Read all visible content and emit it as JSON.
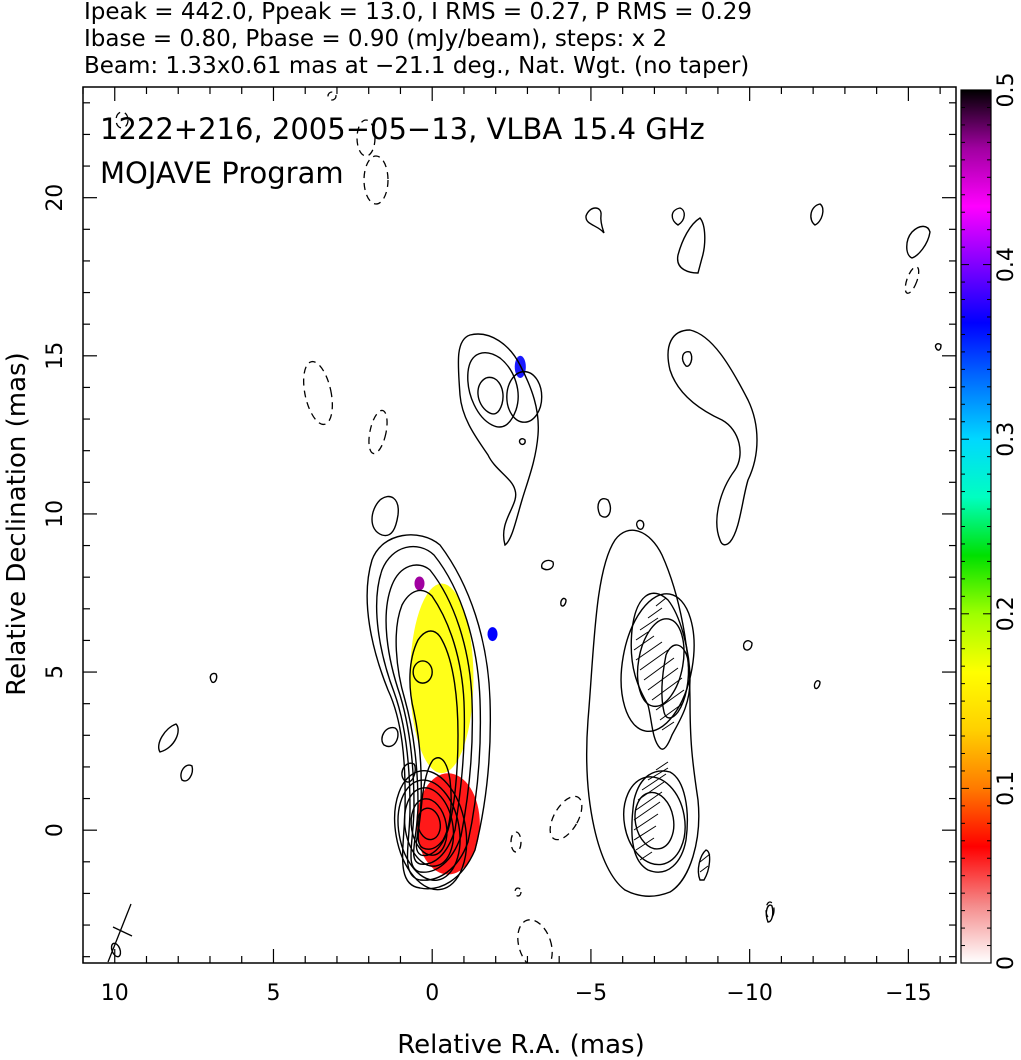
{
  "header": {
    "line1": "Ipeak = 442.0, Ppeak = 13.0, I RMS = 0.27, P RMS = 0.29",
    "line2": "Ibase = 0.80, Pbase = 0.90 (mJy/beam), steps: x 2",
    "line3": "Beam: 1.33x0.61 mas at −21.1 deg., Nat. Wgt. (no taper)"
  },
  "annotation": {
    "line1": "1222+216, 2005−05−13, VLBA 15.4 GHz",
    "line2": "MOJAVE Program"
  },
  "chart_data": {
    "type": "contour",
    "xlabel": "Relative R.A. (mas)",
    "ylabel": "Relative Declination (mas)",
    "xlim": [
      11,
      -16.5
    ],
    "ylim": [
      -4.2,
      23.5
    ],
    "x_ticks": [
      10,
      5,
      0,
      -5,
      -10,
      -15
    ],
    "x_tick_labels": [
      "10",
      "5",
      "0",
      "−5",
      "−10",
      "−15"
    ],
    "y_ticks": [
      0,
      5,
      10,
      15,
      20
    ],
    "y_tick_labels": [
      "0",
      "5",
      "10",
      "15",
      "20"
    ],
    "colorbar": {
      "range": [
        0,
        0.5
      ],
      "ticks": [
        0,
        0.1,
        0.2,
        0.3,
        0.4,
        0.5
      ],
      "tick_labels": [
        "0",
        "0.1",
        "0.2",
        "0.3",
        "0.4",
        "0.5"
      ],
      "colormap": [
        "#ffffff",
        "#f48a8a",
        "#ff0000",
        "#ff7a00",
        "#ffd000",
        "#ffff00",
        "#9eff00",
        "#00e000",
        "#00ffc0",
        "#00d8ff",
        "#0070ff",
        "#0000ff",
        "#8000ff",
        "#ff00ff",
        "#a000a0",
        "#000000"
      ]
    },
    "panels": [
      {
        "name": "stokes-I-with-fractional-polarization",
        "contours": [
          {
            "cx": 0.1,
            "cy": 0.2,
            "rx": 0.35,
            "ry": 0.5,
            "rot": -10
          },
          {
            "cx": 0.1,
            "cy": 0.1,
            "rx": 0.55,
            "ry": 0.9,
            "rot": -10
          },
          {
            "cx": 0.1,
            "cy": 0.1,
            "rx": 0.75,
            "ry": 1.25,
            "rot": -10
          },
          {
            "cx": 0.1,
            "cy": 0.0,
            "rx": 0.95,
            "ry": 1.6,
            "rot": -10
          },
          {
            "cx": 0.05,
            "cy": 0.0,
            "rx": 1.1,
            "ry": 1.9,
            "rot": -10
          },
          {
            "cx": 0.3,
            "cy": 5.0,
            "rx": 0.3,
            "ry": 0.35,
            "rot": 0
          },
          {
            "cx": -2.9,
            "cy": 13.7,
            "rx": 0.55,
            "ry": 0.8,
            "rot": 0
          }
        ],
        "regions": [
          {
            "x": 0.5,
            "y": 1.8,
            "w": 2.0,
            "h": 3.2,
            "value": 0.07
          },
          {
            "x": 0.7,
            "y": 7.8,
            "w": 2.0,
            "h": 6.0,
            "value": 0.16
          },
          {
            "x": -2.6,
            "y": 15.0,
            "w": 0.35,
            "h": 0.7,
            "value": 0.37
          }
        ]
      },
      {
        "name": "polarized-intensity",
        "contours": [
          {
            "cx": -7.0,
            "cy": 0.3,
            "rx": 0.6,
            "ry": 0.9,
            "rot": -10
          },
          {
            "cx": -7.0,
            "cy": 0.3,
            "rx": 0.95,
            "ry": 1.4,
            "rot": -10
          },
          {
            "cx": -7.2,
            "cy": 5.3,
            "rx": 0.7,
            "ry": 1.4,
            "rot": 10
          },
          {
            "cx": -7.1,
            "cy": 5.3,
            "rx": 1.1,
            "ry": 2.2,
            "rot": 10
          }
        ]
      }
    ]
  }
}
